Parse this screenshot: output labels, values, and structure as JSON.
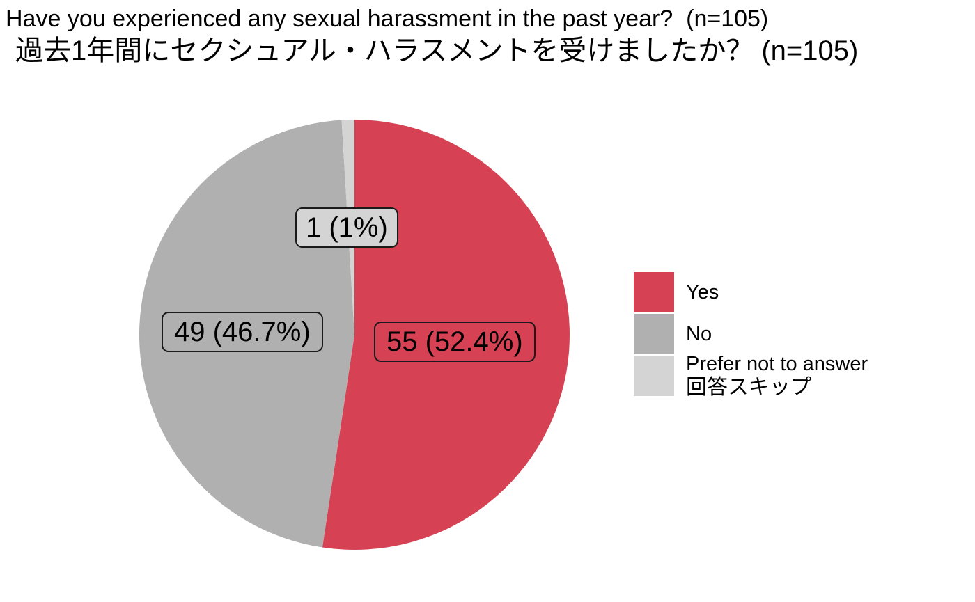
{
  "title": {
    "line1": "Have you experienced any sexual harassment in the past year?  (n=105)",
    "line2": "過去1年間にセクシュアル・ハラスメントを受けましたか？ (n=105)"
  },
  "pie": {
    "labels": {
      "yes": "55 (52.4%)",
      "no": "49 (46.7%)",
      "skip": "1 (1%)"
    }
  },
  "legend": {
    "items": [
      {
        "label": "Yes",
        "color": "#D64253"
      },
      {
        "label": "No",
        "color": "#B0B0B0"
      },
      {
        "label": "Prefer not to answer",
        "label_ja": "回答スキップ",
        "color": "#D4D4D4"
      }
    ]
  },
  "chart_data": {
    "type": "pie",
    "title": "Have you experienced any sexual harassment in the past year?  (n=105)",
    "subtitle": "過去1年間にセクシュアル・ハラスメントを受けましたか？ (n=105)",
    "n_total": 105,
    "categories": [
      "Yes",
      "No",
      "Prefer not to answer / 回答スキップ"
    ],
    "values": [
      55,
      49,
      1
    ],
    "percents": [
      52.4,
      46.7,
      1.0
    ],
    "slice_labels": [
      "55 (52.4%)",
      "49 (46.7%)",
      "1 (1%)"
    ],
    "colors": [
      "#D64253",
      "#B0B0B0",
      "#D4D4D4"
    ],
    "start_angle_deg": 0,
    "direction": "clockwise",
    "legend_position": "right",
    "background": "#FFFFFF"
  }
}
